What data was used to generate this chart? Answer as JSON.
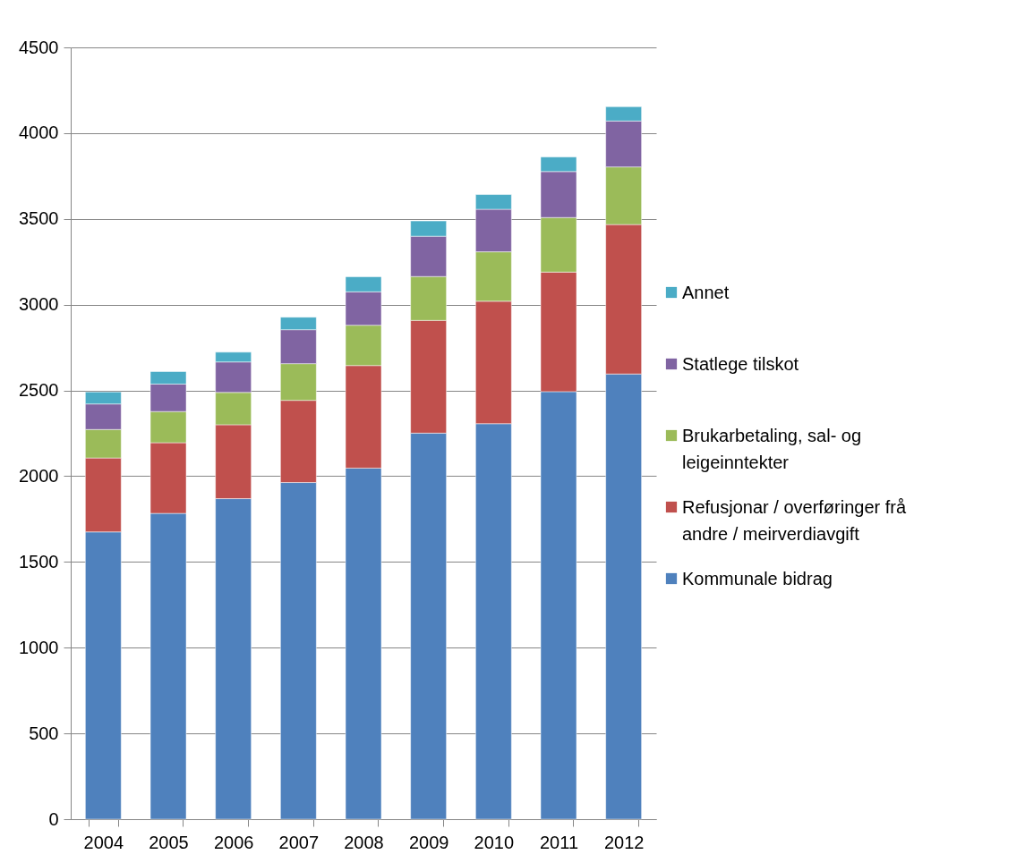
{
  "chart_data": {
    "type": "bar",
    "stacked": true,
    "categories": [
      "2004",
      "2005",
      "2006",
      "2007",
      "2008",
      "2009",
      "2010",
      "2011",
      "2012"
    ],
    "series": [
      {
        "name": "Kommunale bidrag",
        "color": "#4f81bd",
        "values": [
          1675,
          1783,
          1869,
          1963,
          2047,
          2251,
          2306,
          2493,
          2596
        ]
      },
      {
        "name": "Refusjonar / overføringer frå andre / meirverdiavgift",
        "color": "#c0504d",
        "values": [
          431,
          412,
          431,
          479,
          598,
          657,
          714,
          697,
          871
        ]
      },
      {
        "name": "Brukarbetaling, sal- og leigeinntekter",
        "color": "#9bbb59",
        "values": [
          166,
          182,
          188,
          214,
          235,
          256,
          288,
          318,
          336
        ]
      },
      {
        "name": "Statlege tilskot",
        "color": "#8064a2",
        "values": [
          149,
          160,
          178,
          198,
          195,
          235,
          248,
          268,
          268
        ]
      },
      {
        "name": "Annet",
        "color": "#4bacc6",
        "values": [
          70,
          73,
          57,
          73,
          88,
          89,
          86,
          85,
          83
        ]
      }
    ],
    "ylim": [
      0,
      4500
    ],
    "yticks": [
      0,
      500,
      1000,
      1500,
      2000,
      2500,
      3000,
      3500,
      4000,
      4500
    ],
    "grid": "y",
    "legend": "right"
  }
}
